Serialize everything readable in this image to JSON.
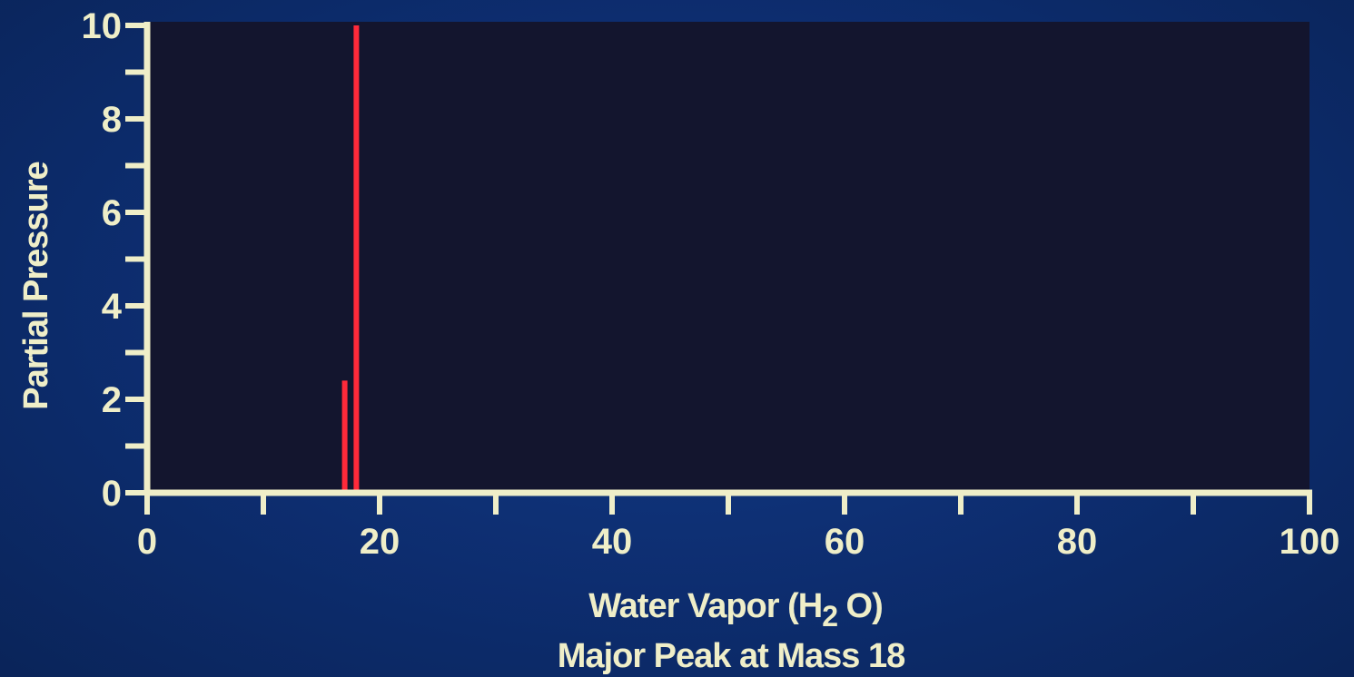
{
  "chart_data": {
    "type": "bar",
    "ylabel": "Partial Pressure",
    "xlabel_line1_main": "Water Vapor (H",
    "xlabel_line1_sub": "2",
    "xlabel_line1_end": " O)",
    "xlabel_line2": "Major Peak at Mass 18",
    "xlim": [
      0,
      100
    ],
    "ylim": [
      0,
      10
    ],
    "x_ticks": [
      0,
      20,
      40,
      60,
      80,
      100
    ],
    "x_tick_labels": [
      "0",
      "20",
      "40",
      "60",
      "80",
      "100"
    ],
    "y_ticks": [
      0,
      2,
      4,
      6,
      8,
      10
    ],
    "y_tick_labels": [
      "0",
      "2",
      "4",
      "6",
      "8",
      "10"
    ],
    "x_minor_step": 10,
    "y_minor_step": 1,
    "grid": false,
    "series": [
      {
        "points": [
          {
            "x": 17,
            "y": 2.4
          },
          {
            "x": 18,
            "y": 10
          }
        ]
      }
    ],
    "colors": {
      "background": "#0d2d6f",
      "plot_area": "#13152e",
      "axis": "#efeec8",
      "text": "#efeec8",
      "peak": "#ff2a3a"
    }
  }
}
